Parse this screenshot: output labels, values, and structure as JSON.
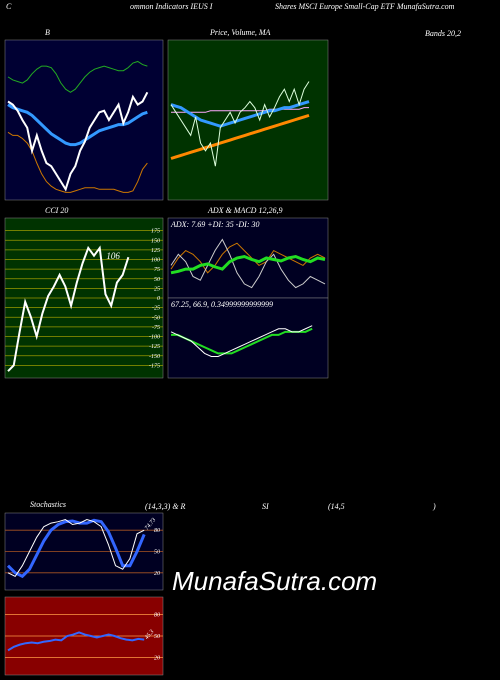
{
  "header": [
    "C",
    "ommon  Indicators IEUS I",
    "Shares MSCI Europe   Small-Cap ETF MunafaSutra.com",
    "Bands 20,2",
    "(14,3,3) & R",
    "SI",
    "(14,5",
    ")",
    "MunafaSutra.com"
  ],
  "chart_data": [
    {
      "type": "line",
      "title": "B",
      "background": "#000033",
      "ylim": [
        0,
        100
      ],
      "series": [
        {
          "color": "#22aa22",
          "width": 1,
          "values": [
            78,
            76,
            75,
            74,
            76,
            80,
            83,
            85,
            85,
            84,
            80,
            74,
            70,
            68,
            70,
            74,
            78,
            81,
            83,
            84,
            85,
            84,
            83,
            82,
            82,
            84,
            87,
            88,
            86,
            85
          ]
        },
        {
          "color": "#3399ff",
          "width": 3,
          "values": [
            60,
            58,
            57,
            56,
            55,
            53,
            50,
            47,
            44,
            41,
            39,
            37,
            35,
            34,
            34,
            35,
            37,
            39,
            41,
            43,
            44,
            45,
            46,
            47,
            47,
            48,
            50,
            52,
            54,
            55
          ]
        },
        {
          "color": "#cc7700",
          "width": 1,
          "values": [
            42,
            40,
            40,
            38,
            35,
            30,
            22,
            15,
            10,
            7,
            5,
            4,
            3,
            3,
            4,
            5,
            6,
            6,
            6,
            5,
            5,
            5,
            5,
            4,
            3,
            3,
            4,
            10,
            18,
            22
          ]
        },
        {
          "color": "#ffffff",
          "width": 2,
          "values": [
            62,
            60,
            56,
            50,
            45,
            30,
            40,
            30,
            22,
            20,
            15,
            10,
            5,
            15,
            20,
            30,
            36,
            45,
            50,
            55,
            56,
            50,
            55,
            60,
            48,
            55,
            65,
            60,
            62,
            68
          ]
        }
      ]
    },
    {
      "type": "line",
      "title": "Price, Volume, MA",
      "background": "#003300",
      "ylim": [
        0,
        100
      ],
      "series": [
        {
          "color": "#ff8800",
          "width": 3,
          "values": [
            25,
            26,
            27,
            28,
            29,
            30,
            31,
            32,
            33,
            34,
            35,
            36,
            37,
            38,
            39,
            40,
            41,
            42,
            43,
            44,
            45,
            46,
            47,
            48,
            49,
            50,
            51,
            52,
            53
          ]
        },
        {
          "color": "#ffaaff",
          "width": 1,
          "values": [
            55,
            55,
            55,
            55,
            55,
            55,
            55,
            55,
            56,
            56,
            56,
            56,
            56,
            56,
            56,
            56,
            56,
            56,
            56,
            56,
            57,
            57,
            57,
            57,
            57,
            57,
            57,
            58,
            58
          ]
        },
        {
          "color": "#3399ff",
          "width": 3,
          "values": [
            60,
            59,
            58,
            56,
            54,
            52,
            50,
            49,
            48,
            47,
            46,
            47,
            48,
            49,
            50,
            51,
            52,
            53,
            54,
            55,
            56,
            56,
            57,
            58,
            58,
            59,
            60,
            61,
            62
          ]
        },
        {
          "color": "#ddffdd",
          "width": 1,
          "values": [
            60,
            55,
            50,
            45,
            40,
            52,
            35,
            30,
            35,
            20,
            45,
            50,
            55,
            48,
            55,
            58,
            62,
            58,
            50,
            60,
            52,
            58,
            65,
            70,
            62,
            70,
            60,
            70,
            75
          ]
        }
      ]
    },
    {
      "type": "line",
      "title": "CCI 20",
      "background": "#003300",
      "grid_color": "#999900",
      "ylim": [
        -200,
        200
      ],
      "yticks": [
        175,
        150,
        125,
        100,
        75,
        50,
        25,
        0,
        -25,
        -50,
        -75,
        -100,
        -125,
        -150,
        -175
      ],
      "annotation": "106",
      "series": [
        {
          "color": "#ffffff",
          "width": 2,
          "values": [
            -190,
            -175,
            -90,
            -10,
            -50,
            -100,
            -40,
            5,
            30,
            60,
            30,
            -20,
            40,
            90,
            130,
            110,
            130,
            10,
            -20,
            40,
            60,
            106
          ]
        }
      ]
    },
    {
      "type": "line",
      "title": "ADX  & MACD 12,26,9",
      "background": "#000022",
      "ylim": [
        0,
        100
      ],
      "annotation": "ADX: 7.69  +DI: 35  -DI: 30",
      "series": [
        {
          "color": "#cc7700",
          "width": 1,
          "values": [
            35,
            50,
            60,
            55,
            45,
            30,
            40,
            55,
            65,
            70,
            60,
            50,
            40,
            45,
            60,
            55,
            50,
            45,
            40,
            50,
            55,
            50
          ]
        },
        {
          "color": "#cccccc",
          "width": 1,
          "values": [
            40,
            55,
            45,
            25,
            20,
            40,
            60,
            75,
            55,
            30,
            15,
            10,
            25,
            45,
            55,
            35,
            20,
            10,
            15,
            25,
            20,
            15
          ]
        },
        {
          "color": "#22dd22",
          "width": 3,
          "values": [
            30,
            32,
            35,
            35,
            40,
            42,
            38,
            35,
            45,
            50,
            52,
            48,
            45,
            50,
            48,
            46,
            50,
            52,
            48,
            45,
            50,
            48
          ]
        }
      ]
    },
    {
      "type": "line",
      "background": "#000022",
      "ylim": [
        -12,
        12
      ],
      "annotation": "67.25,  66.9,  0.34999999999999",
      "series": [
        {
          "color": "#22dd22",
          "width": 2,
          "values": [
            1,
            1,
            0,
            -1,
            -2,
            -3,
            -4,
            -5,
            -5,
            -5,
            -4,
            -3,
            -2,
            -1,
            0,
            1,
            1,
            2,
            2,
            2,
            2,
            3
          ]
        },
        {
          "color": "#ffffff",
          "width": 1,
          "values": [
            2,
            1,
            0,
            -1,
            -3,
            -5,
            -6,
            -6,
            -5,
            -4,
            -3,
            -2,
            -1,
            0,
            1,
            2,
            3,
            3,
            2,
            2,
            3,
            4
          ]
        }
      ]
    },
    {
      "type": "line",
      "title": "Stochastics",
      "background": "#000022",
      "grid_color": "#aa5522",
      "ylim": [
        0,
        100
      ],
      "yticks": [
        80,
        50,
        20
      ],
      "annotation": "74.73",
      "series": [
        {
          "color": "#3366ff",
          "width": 3,
          "values": [
            30,
            20,
            15,
            25,
            45,
            65,
            80,
            88,
            92,
            93,
            90,
            90,
            94,
            92,
            78,
            55,
            30,
            30,
            50,
            74
          ]
        },
        {
          "color": "#ffffff",
          "width": 1,
          "values": [
            20,
            15,
            30,
            50,
            70,
            85,
            90,
            92,
            95,
            88,
            90,
            95,
            92,
            85,
            60,
            30,
            25,
            40,
            75,
            80
          ]
        }
      ]
    },
    {
      "type": "line",
      "background": "#880000",
      "grid_color": "#ff9944",
      "ylim": [
        0,
        100
      ],
      "yticks": [
        80,
        50,
        20
      ],
      "annotation": "45.3",
      "series": [
        {
          "color": "#3366ff",
          "width": 2,
          "values": [
            30,
            35,
            38,
            40,
            41,
            40,
            42,
            43,
            45,
            44,
            50,
            52,
            55,
            52,
            50,
            48,
            50,
            52,
            50,
            47,
            45,
            44,
            46,
            45
          ]
        }
      ]
    }
  ]
}
